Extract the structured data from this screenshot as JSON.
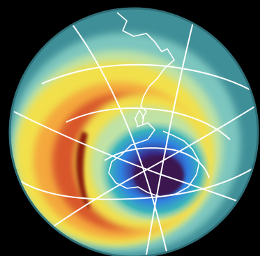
{
  "image": {
    "subject": "",
    "colors": {
      "background": "#000000",
      "outer_teal": "#3f8f98",
      "light_teal": "#7cc6bf",
      "pale_green": "#bfe2a6",
      "yellow": "#f2e04c",
      "orange": "#f4a83c",
      "red": "#d8572c",
      "dark_red": "#8c1f10",
      "blue_green": "#39b4bb",
      "blue": "#2f7fe0",
      "deep_blue": "#1f3fa8",
      "indigo": "#3a2a86",
      "core_purple": "#3b1650",
      "grid_lines": "#ffffff",
      "coastline": "#ffffff"
    }
  }
}
